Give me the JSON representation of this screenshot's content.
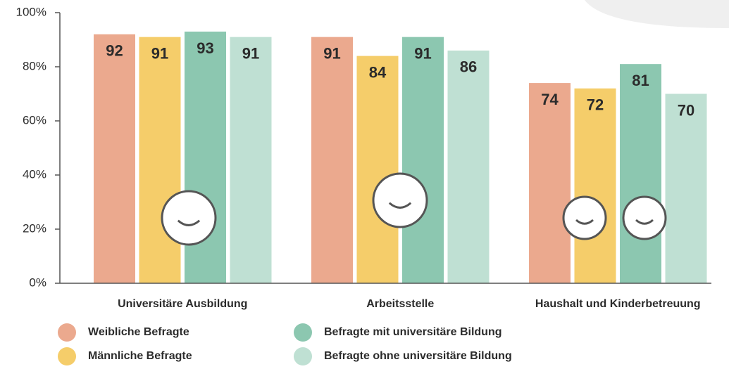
{
  "chart_data": {
    "type": "bar",
    "categories": [
      "Universitäre Ausbildung",
      "Arbeitsstelle",
      "Haushalt und Kinderbetreuung"
    ],
    "series": [
      {
        "name": "Weibliche Befragte",
        "color": "#eba98e",
        "values": [
          92,
          91,
          74
        ]
      },
      {
        "name": "Männliche Befragte",
        "color": "#f5cd6a",
        "values": [
          91,
          84,
          72
        ]
      },
      {
        "name": "Befragte mit universitäre Bildung",
        "color": "#8cc7b0",
        "values": [
          93,
          91,
          81
        ]
      },
      {
        "name": "Befragte ohne universitäre Bildung",
        "color": "#bfe0d3",
        "values": [
          91,
          86,
          70
        ]
      }
    ],
    "ylim": [
      0,
      100
    ],
    "yticks": [
      {
        "value": 0,
        "label": "0%"
      },
      {
        "value": 20,
        "label": "20%"
      },
      {
        "value": 40,
        "label": "40%"
      },
      {
        "value": 60,
        "label": "60%"
      },
      {
        "value": 80,
        "label": "80%"
      },
      {
        "value": 100,
        "label": "100%"
      }
    ]
  }
}
